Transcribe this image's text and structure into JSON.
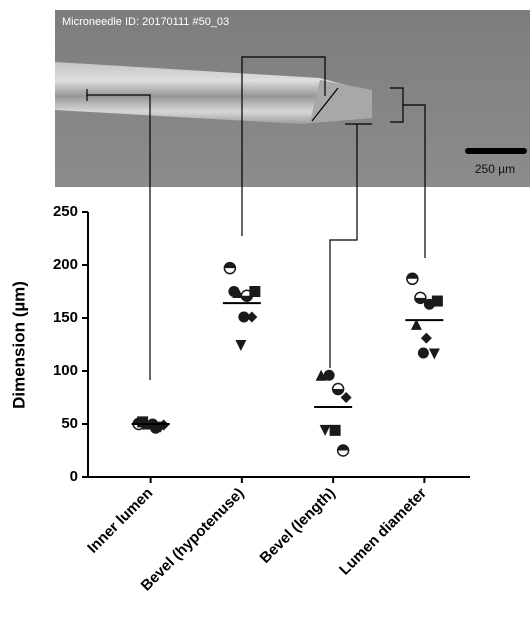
{
  "image": {
    "id_label": "Microneedle ID: 20170111 #50_03",
    "scale_label": "250 µm"
  },
  "chart_data": {
    "type": "dot",
    "y_label": "Dimension (µm)",
    "categories": [
      "Inner lumen",
      "Bevel (hypotenuse)",
      "Bevel (length)",
      "Lumen diameter"
    ],
    "markers": [
      [
        "half",
        "triangle",
        "circle",
        "diamond",
        "square",
        "circle",
        "triangle-down"
      ],
      [
        "half",
        "triangle",
        "half-open",
        "square",
        "circle",
        "circle",
        "diamond",
        "triangle-down"
      ],
      [
        "triangle",
        "circle",
        "half-open",
        "diamond",
        "triangle-down",
        "square",
        "half"
      ],
      [
        "half",
        "half-open",
        "circle",
        "square",
        "triangle",
        "diamond",
        "triangle-down",
        "circle"
      ]
    ],
    "values": [
      [
        50,
        50,
        46,
        49,
        52,
        50,
        47
      ],
      [
        197,
        174,
        171,
        175,
        175,
        151,
        151,
        124
      ],
      [
        96,
        96,
        83,
        75,
        44,
        44,
        25
      ],
      [
        187,
        169,
        163,
        166,
        144,
        131,
        116,
        117
      ]
    ],
    "means": [
      50,
      164,
      66,
      148
    ],
    "ylim": [
      0,
      250
    ],
    "yticks": [
      0,
      50,
      100,
      150,
      200,
      250
    ],
    "color": "#1a1a1a"
  }
}
